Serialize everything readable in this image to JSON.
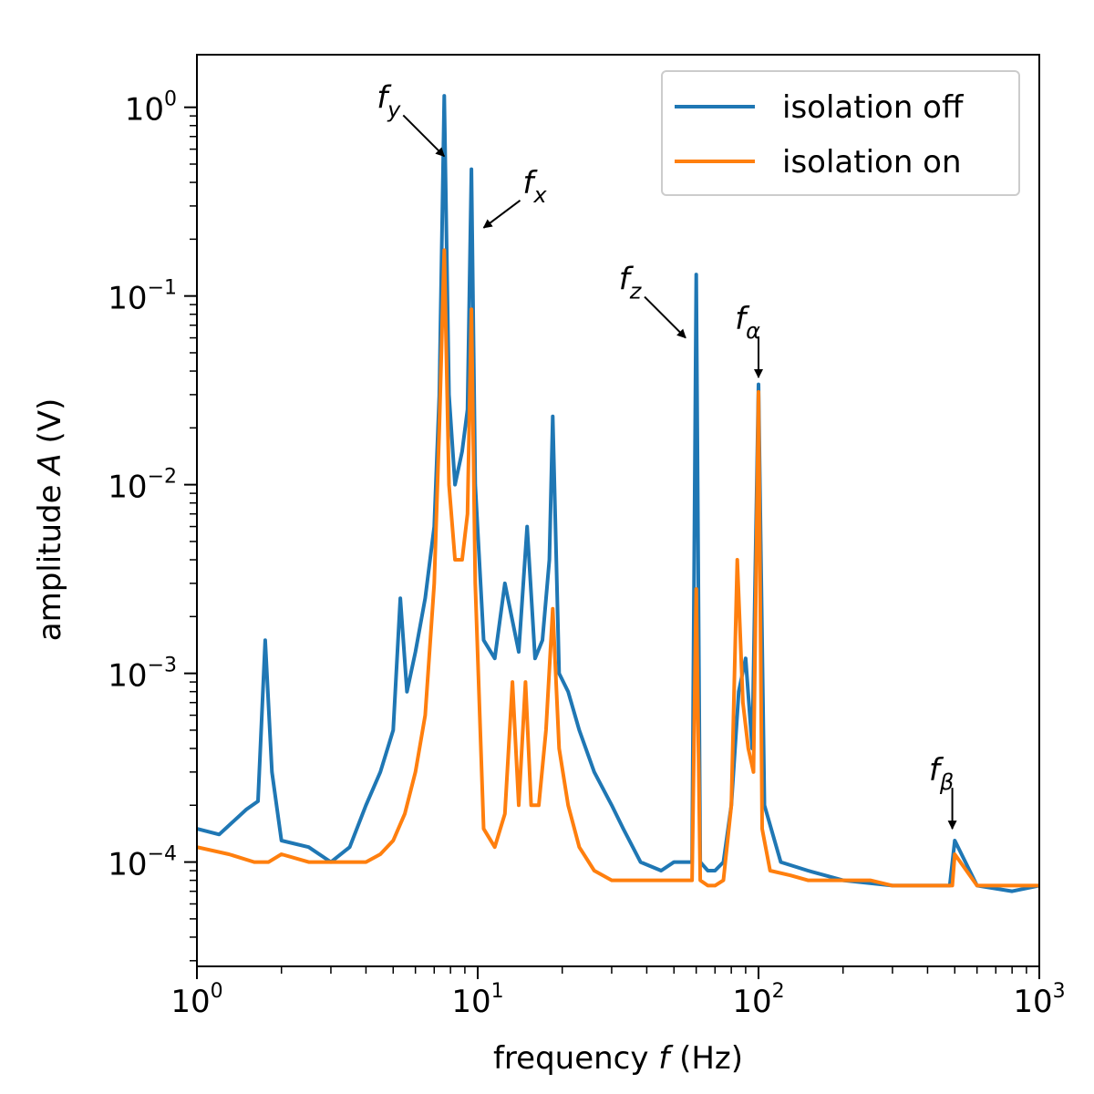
{
  "chart_data": {
    "type": "line",
    "xscale": "log",
    "yscale": "log",
    "xlim": [
      1,
      1000
    ],
    "ylim": [
      2.8e-05,
      1.9
    ],
    "xlabel": {
      "text": "frequency ",
      "var": "f",
      "unit": "(Hz)"
    },
    "ylabel": {
      "text": "amplitude ",
      "var": "A",
      "unit": "(V)"
    },
    "xticks": [
      {
        "value": 1,
        "base": "10",
        "exp": "0"
      },
      {
        "value": 10,
        "base": "10",
        "exp": "1"
      },
      {
        "value": 100,
        "base": "10",
        "exp": "2"
      },
      {
        "value": 1000,
        "base": "10",
        "exp": "3"
      }
    ],
    "yticks": [
      {
        "value": 0.0001,
        "base": "10",
        "exp": "−4"
      },
      {
        "value": 0.001,
        "base": "10",
        "exp": "−3"
      },
      {
        "value": 0.01,
        "base": "10",
        "exp": "−2"
      },
      {
        "value": 0.1,
        "base": "10",
        "exp": "−1"
      },
      {
        "value": 1,
        "base": "10",
        "exp": "0"
      }
    ],
    "legend_position": "top-right",
    "series": [
      {
        "name": "isolation off",
        "color": "#1f77b4",
        "x": [
          1.0,
          1.2,
          1.5,
          1.65,
          1.75,
          1.85,
          2.0,
          2.5,
          3.0,
          3.5,
          4.0,
          4.5,
          5.0,
          5.3,
          5.6,
          6.0,
          6.5,
          7.0,
          7.3,
          7.6,
          7.9,
          8.3,
          8.8,
          9.2,
          9.5,
          9.8,
          10.5,
          11.5,
          12.5,
          14.0,
          15.0,
          16.0,
          17.0,
          18.0,
          18.5,
          19.5,
          21.0,
          23.0,
          26.0,
          30.0,
          33.0,
          38.0,
          45.0,
          50.0,
          55.0,
          58.0,
          60.0,
          62.0,
          66.0,
          70.0,
          75.0,
          80.0,
          85.0,
          90.0,
          95.0,
          100.0,
          105.0,
          120.0,
          150.0,
          200.0,
          300.0,
          400.0,
          480.0,
          500.0,
          600.0,
          800.0,
          1000.0
        ],
        "y": [
          0.00015,
          0.00014,
          0.00019,
          0.00021,
          0.0015,
          0.0003,
          0.00013,
          0.00012,
          0.0001,
          0.00012,
          0.0002,
          0.0003,
          0.0005,
          0.0025,
          0.0008,
          0.0013,
          0.0025,
          0.006,
          0.03,
          1.15,
          0.03,
          0.01,
          0.015,
          0.025,
          0.47,
          0.01,
          0.0015,
          0.0012,
          0.003,
          0.0013,
          0.006,
          0.0012,
          0.0015,
          0.004,
          0.023,
          0.001,
          0.0008,
          0.0005,
          0.0003,
          0.0002,
          0.00015,
          0.0001,
          9e-05,
          0.0001,
          0.0001,
          0.0001,
          0.13,
          0.0001,
          9e-05,
          9e-05,
          0.0001,
          0.0002,
          0.0008,
          0.0012,
          0.0004,
          0.034,
          0.0002,
          0.0001,
          9e-05,
          8e-05,
          7.5e-05,
          7.5e-05,
          7.5e-05,
          0.00013,
          7.5e-05,
          7e-05,
          7.5e-05
        ]
      },
      {
        "name": "isolation on",
        "color": "#ff7f0e",
        "x": [
          1.0,
          1.3,
          1.6,
          1.8,
          2.0,
          2.5,
          3.0,
          3.5,
          4.0,
          4.5,
          5.0,
          5.5,
          6.0,
          6.5,
          7.0,
          7.3,
          7.6,
          7.9,
          8.3,
          8.8,
          9.2,
          9.5,
          9.8,
          10.5,
          11.5,
          12.5,
          13.3,
          14.0,
          14.8,
          15.5,
          16.5,
          17.5,
          18.5,
          19.5,
          21.0,
          23.0,
          26.0,
          30.0,
          35.0,
          40.0,
          45.0,
          50.0,
          55.0,
          58.0,
          60.0,
          62.0,
          66.0,
          70.0,
          75.0,
          80.0,
          84.0,
          88.0,
          92.0,
          96.0,
          100.0,
          103.0,
          110.0,
          130.0,
          150.0,
          200.0,
          250.0,
          300.0,
          400.0,
          490.0,
          500.0,
          600.0,
          800.0,
          1000.0
        ],
        "y": [
          0.00012,
          0.00011,
          0.0001,
          0.0001,
          0.00011,
          0.0001,
          0.0001,
          0.0001,
          0.0001,
          0.00011,
          0.00013,
          0.00018,
          0.0003,
          0.0006,
          0.003,
          0.02,
          0.175,
          0.01,
          0.004,
          0.004,
          0.007,
          0.085,
          0.003,
          0.00015,
          0.00012,
          0.00018,
          0.0009,
          0.0002,
          0.0009,
          0.0002,
          0.0002,
          0.0005,
          0.0022,
          0.0004,
          0.0002,
          0.00012,
          9e-05,
          8e-05,
          8e-05,
          8e-05,
          8e-05,
          8e-05,
          8e-05,
          8e-05,
          0.0028,
          8e-05,
          7.5e-05,
          7.5e-05,
          8e-05,
          0.0002,
          0.004,
          0.0007,
          0.0004,
          0.0003,
          0.031,
          0.00015,
          9e-05,
          8.5e-05,
          8e-05,
          8e-05,
          8e-05,
          7.5e-05,
          7.5e-05,
          7.5e-05,
          0.00011,
          7.5e-05,
          7.5e-05,
          7.5e-05
        ]
      }
    ],
    "annotations": [
      {
        "label": "f",
        "sub": "y",
        "x": 7.6,
        "y": 0.55
      },
      {
        "label": "f",
        "sub": "x",
        "x": 10.5,
        "y": 0.23
      },
      {
        "label": "f",
        "sub": "z",
        "x": 55,
        "y": 0.06
      },
      {
        "label": "f",
        "sub": "α",
        "x": 100,
        "y": 0.037
      },
      {
        "label": "f",
        "sub": "β",
        "x": 490,
        "y": 0.00015
      }
    ]
  }
}
